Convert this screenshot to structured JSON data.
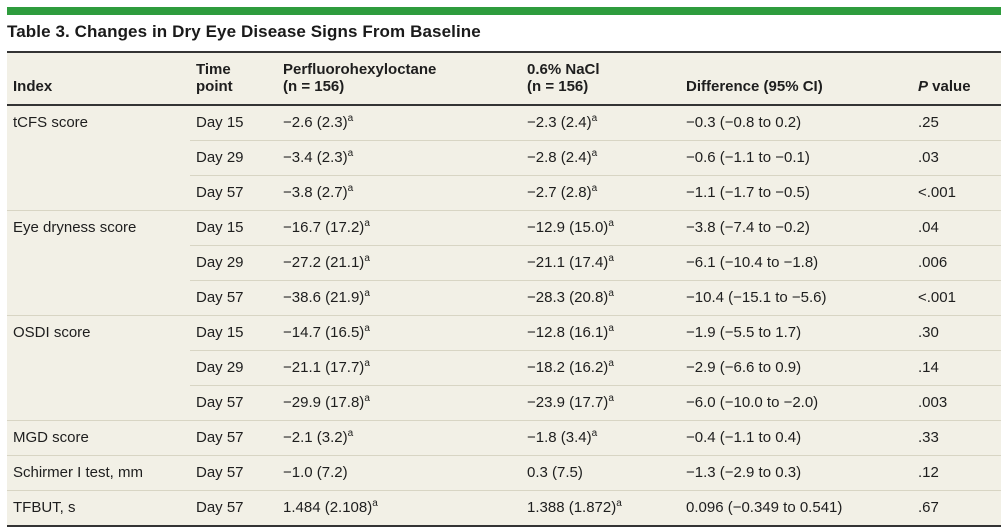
{
  "colors": {
    "green_bar": "#2e9c3d",
    "table_background": "#f2f0e6",
    "dark_rule": "#343434",
    "light_rule": "#d8d5c4",
    "text": "#1e1e1e"
  },
  "title": "Table 3. Changes in Dry Eye Disease Signs From Baseline",
  "footnote_marker": "a",
  "table": {
    "columns": [
      {
        "id": "index",
        "lines": [
          "Index"
        ]
      },
      {
        "id": "time-point",
        "lines": [
          "Time",
          "point"
        ]
      },
      {
        "id": "pfho",
        "lines": [
          "Perfluorohexyloctane",
          "(n = 156)"
        ]
      },
      {
        "id": "nacl",
        "lines": [
          "0.6% NaCl",
          "(n = 156)"
        ]
      },
      {
        "id": "difference",
        "lines": [
          "Difference (95% CI)"
        ]
      },
      {
        "id": "p-value",
        "lines": [
          "P value"
        ],
        "italic_first_word": true
      }
    ],
    "rows": [
      {
        "index": "tCFS score",
        "index_rowspan": 3,
        "time": "Day 15",
        "pfho": {
          "text": "−2.6 (2.3)",
          "sup": "a"
        },
        "nacl": {
          "text": "−2.3 (2.4)",
          "sup": "a"
        },
        "difference": "−0.3 (−0.8 to 0.2)",
        "p": ".25"
      },
      {
        "time": "Day 29",
        "pfho": {
          "text": "−3.4 (2.3)",
          "sup": "a"
        },
        "nacl": {
          "text": "−2.8 (2.4)",
          "sup": "a"
        },
        "difference": "−0.6 (−1.1 to −0.1)",
        "p": ".03"
      },
      {
        "time": "Day 57",
        "pfho": {
          "text": "−3.8 (2.7)",
          "sup": "a"
        },
        "nacl": {
          "text": "−2.7 (2.8)",
          "sup": "a"
        },
        "difference": "−1.1 (−1.7 to −0.5)",
        "p": "<.001"
      },
      {
        "index": "Eye dryness score",
        "index_rowspan": 3,
        "time": "Day 15",
        "pfho": {
          "text": "−16.7 (17.2)",
          "sup": "a"
        },
        "nacl": {
          "text": "−12.9 (15.0)",
          "sup": "a"
        },
        "difference": "−3.8 (−7.4 to −0.2)",
        "p": ".04"
      },
      {
        "time": "Day 29",
        "pfho": {
          "text": "−27.2 (21.1)",
          "sup": "a"
        },
        "nacl": {
          "text": "−21.1 (17.4)",
          "sup": "a"
        },
        "difference": "−6.1 (−10.4 to −1.8)",
        "p": ".006"
      },
      {
        "time": "Day 57",
        "pfho": {
          "text": "−38.6 (21.9)",
          "sup": "a"
        },
        "nacl": {
          "text": "−28.3 (20.8)",
          "sup": "a"
        },
        "difference": "−10.4 (−15.1 to −5.6)",
        "p": "<.001"
      },
      {
        "index": "OSDI score",
        "index_rowspan": 3,
        "time": "Day 15",
        "pfho": {
          "text": "−14.7 (16.5)",
          "sup": "a"
        },
        "nacl": {
          "text": "−12.8 (16.1)",
          "sup": "a"
        },
        "difference": "−1.9 (−5.5 to 1.7)",
        "p": ".30"
      },
      {
        "time": "Day 29",
        "pfho": {
          "text": "−21.1 (17.7)",
          "sup": "a"
        },
        "nacl": {
          "text": "−18.2 (16.2)",
          "sup": "a"
        },
        "difference": "−2.9 (−6.6 to 0.9)",
        "p": ".14"
      },
      {
        "time": "Day 57",
        "pfho": {
          "text": "−29.9 (17.8)",
          "sup": "a"
        },
        "nacl": {
          "text": "−23.9 (17.7)",
          "sup": "a"
        },
        "difference": "−6.0 (−10.0 to −2.0)",
        "p": ".003"
      },
      {
        "index": "MGD score",
        "index_rowspan": 1,
        "time": "Day 57",
        "pfho": {
          "text": "−2.1 (3.2)",
          "sup": "a"
        },
        "nacl": {
          "text": "−1.8 (3.4)",
          "sup": "a"
        },
        "difference": "−0.4 (−1.1 to 0.4)",
        "p": ".33"
      },
      {
        "index": "Schirmer I test, mm",
        "index_rowspan": 1,
        "time": "Day 57",
        "pfho": {
          "text": "−1.0 (7.2)",
          "sup": null
        },
        "nacl": {
          "text": "0.3 (7.5)",
          "sup": null
        },
        "difference": "−1.3 (−2.9 to 0.3)",
        "p": ".12"
      },
      {
        "index": "TFBUT, s",
        "index_rowspan": 1,
        "time": "Day 57",
        "pfho": {
          "text": "1.484 (2.108)",
          "sup": "a"
        },
        "nacl": {
          "text": "1.388 (1.872)",
          "sup": "a"
        },
        "difference": "0.096 (−0.349 to 0.541)",
        "p": ".67"
      }
    ]
  }
}
